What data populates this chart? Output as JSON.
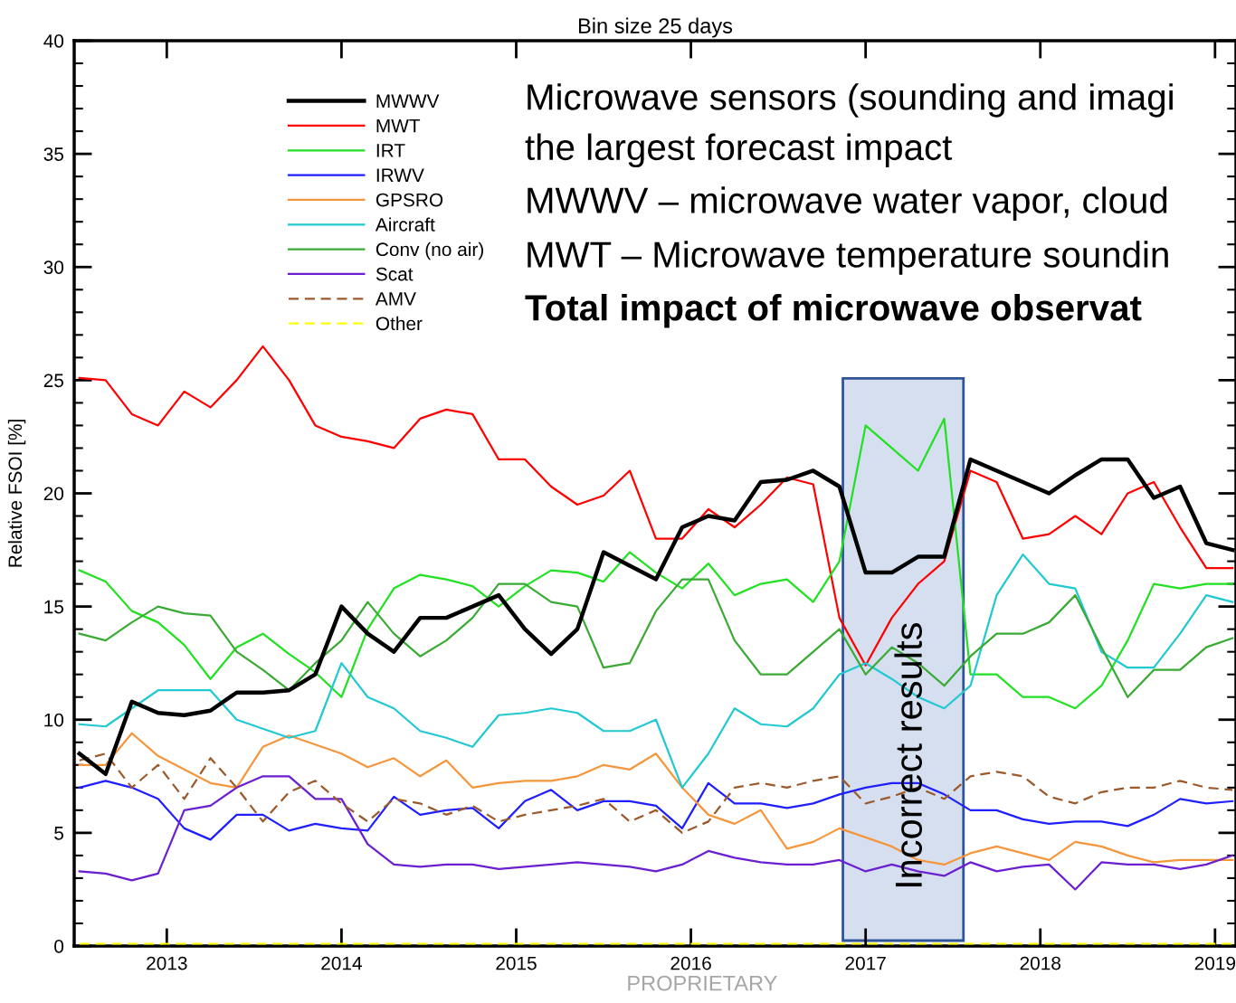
{
  "chart_data": {
    "type": "line",
    "title": "Bin size 25 days",
    "ylabel": "Relative FSOI [%]",
    "x": [
      2012.5,
      2012.65,
      2012.8,
      2012.95,
      2013.1,
      2013.25,
      2013.4,
      2013.55,
      2013.7,
      2013.85,
      2014.0,
      2014.15,
      2014.3,
      2014.45,
      2014.6,
      2014.75,
      2014.9,
      2015.05,
      2015.2,
      2015.35,
      2015.5,
      2015.65,
      2015.8,
      2015.95,
      2016.1,
      2016.25,
      2016.4,
      2016.55,
      2016.7,
      2016.85,
      2017.0,
      2017.15,
      2017.3,
      2017.45,
      2017.6,
      2017.75,
      2017.9,
      2018.05,
      2018.2,
      2018.35,
      2018.5,
      2018.65,
      2018.8,
      2018.95,
      2019.1
    ],
    "series": [
      {
        "name": "MWWV",
        "color": "#000000",
        "values": [
          8.5,
          7.6,
          10.8,
          10.3,
          10.2,
          10.4,
          11.2,
          11.2,
          11.3,
          12.0,
          15.0,
          13.8,
          13.0,
          14.5,
          14.5,
          15.0,
          15.5,
          14.0,
          12.9,
          14.0,
          17.4,
          16.8,
          16.2,
          18.5,
          19.0,
          18.8,
          20.5,
          20.6,
          21.0,
          20.3,
          16.5,
          16.5,
          17.2,
          17.2,
          21.5,
          21.0,
          20.5,
          20.0,
          20.8,
          21.5,
          21.5,
          19.8,
          20.3,
          17.8,
          17.5
        ]
      },
      {
        "name": "MWT",
        "color": "#ff0000",
        "values": [
          25.1,
          25.0,
          23.5,
          23.0,
          24.5,
          23.8,
          25.0,
          26.5,
          25.0,
          23.0,
          22.5,
          22.3,
          22.0,
          23.3,
          23.7,
          23.5,
          21.5,
          21.5,
          20.3,
          19.5,
          19.9,
          21.0,
          18.0,
          18.0,
          19.3,
          18.5,
          19.5,
          20.7,
          20.4,
          14.5,
          12.4,
          14.5,
          16.0,
          17.0,
          21.0,
          20.5,
          18.0,
          18.2,
          19.0,
          18.2,
          20.0,
          20.5,
          18.5,
          16.7,
          16.7
        ]
      },
      {
        "name": "IRT",
        "color": "#22e022",
        "values": [
          16.6,
          16.1,
          14.8,
          14.3,
          13.3,
          11.8,
          13.2,
          13.8,
          12.9,
          12.1,
          11.0,
          14.0,
          15.8,
          16.4,
          16.2,
          15.9,
          15.0,
          15.9,
          16.6,
          16.5,
          16.1,
          17.4,
          16.5,
          15.8,
          16.9,
          15.5,
          16.0,
          16.2,
          15.2,
          17.0,
          23.0,
          22.0,
          21.0,
          23.3,
          12.0,
          12.0,
          11.0,
          11.0,
          10.5,
          11.5,
          13.5,
          16.0,
          15.8,
          16.0,
          16.0
        ]
      },
      {
        "name": "IRWV",
        "color": "#1f1fff",
        "values": [
          7.0,
          7.3,
          7.0,
          6.5,
          5.2,
          4.7,
          5.8,
          5.8,
          5.1,
          5.4,
          5.2,
          5.1,
          6.6,
          5.8,
          6.0,
          6.1,
          5.2,
          6.4,
          6.9,
          6.0,
          6.4,
          6.4,
          6.2,
          5.2,
          7.2,
          6.3,
          6.3,
          6.1,
          6.3,
          6.7,
          7.0,
          7.2,
          7.2,
          6.7,
          6.0,
          6.0,
          5.6,
          5.4,
          5.5,
          5.5,
          5.3,
          5.8,
          6.5,
          6.3,
          6.4
        ]
      },
      {
        "name": "GPSRO",
        "color": "#f5963c",
        "values": [
          8.0,
          8.0,
          9.4,
          8.4,
          7.8,
          7.2,
          7.0,
          8.8,
          9.3,
          8.9,
          8.5,
          7.9,
          8.3,
          7.5,
          8.2,
          7.0,
          7.2,
          7.3,
          7.3,
          7.5,
          8.0,
          7.8,
          8.5,
          7.0,
          5.8,
          5.4,
          6.0,
          4.3,
          4.6,
          5.2,
          4.8,
          4.4,
          3.8,
          3.6,
          4.1,
          4.4,
          4.1,
          3.8,
          4.6,
          4.4,
          4.0,
          3.7,
          3.8,
          3.8,
          3.8
        ]
      },
      {
        "name": "Aircraft",
        "color": "#22c8d2",
        "values": [
          9.8,
          9.7,
          10.5,
          11.3,
          11.3,
          11.3,
          10.0,
          9.6,
          9.2,
          9.5,
          12.5,
          11.0,
          10.5,
          9.5,
          9.2,
          8.8,
          10.2,
          10.3,
          10.5,
          10.3,
          9.5,
          9.5,
          10.0,
          7.0,
          8.5,
          10.5,
          9.8,
          9.7,
          10.5,
          12.0,
          12.5,
          11.8,
          11.0,
          10.5,
          11.5,
          15.5,
          17.3,
          16.0,
          15.8,
          13.0,
          12.3,
          12.3,
          13.8,
          15.5,
          15.2
        ]
      },
      {
        "name": "Conv (no air)",
        "color": "#3aaa35",
        "values": [
          13.8,
          13.5,
          14.3,
          15.0,
          14.7,
          14.6,
          13.0,
          12.2,
          11.3,
          12.5,
          13.5,
          15.2,
          13.8,
          12.8,
          13.5,
          14.5,
          16.0,
          16.0,
          15.2,
          15.0,
          12.3,
          12.5,
          14.8,
          16.2,
          16.2,
          13.5,
          12.0,
          12.0,
          13.0,
          14.0,
          12.0,
          13.2,
          12.5,
          11.5,
          12.8,
          13.8,
          13.8,
          14.3,
          15.5,
          13.2,
          11.0,
          12.2,
          12.2,
          13.2,
          13.6
        ]
      },
      {
        "name": "Scat",
        "color": "#6a1fd0",
        "values": [
          3.3,
          3.2,
          2.9,
          3.2,
          6.0,
          6.2,
          7.0,
          7.5,
          7.5,
          6.5,
          6.5,
          4.5,
          3.6,
          3.5,
          3.6,
          3.6,
          3.4,
          3.5,
          3.6,
          3.7,
          3.6,
          3.5,
          3.3,
          3.6,
          4.2,
          3.9,
          3.7,
          3.6,
          3.6,
          3.8,
          3.3,
          3.6,
          3.3,
          3.1,
          3.7,
          3.3,
          3.5,
          3.6,
          2.5,
          3.7,
          3.6,
          3.6,
          3.4,
          3.6,
          4.0
        ]
      },
      {
        "name": "AMV",
        "color": "#9c5a2c",
        "line_style": "dashed",
        "values": [
          8.2,
          8.5,
          7.0,
          8.0,
          6.5,
          8.3,
          7.0,
          5.5,
          6.8,
          7.3,
          6.3,
          5.5,
          6.5,
          6.3,
          5.8,
          6.2,
          5.5,
          5.8,
          6.0,
          6.2,
          6.5,
          5.5,
          6.0,
          5.0,
          5.5,
          7.0,
          7.2,
          7.0,
          7.3,
          7.5,
          6.3,
          6.6,
          7.0,
          6.5,
          7.5,
          7.7,
          7.5,
          6.6,
          6.3,
          6.8,
          7.0,
          7.0,
          7.3,
          7.0,
          6.9
        ]
      },
      {
        "name": "Other",
        "color": "#ffff00",
        "line_style": "dashed",
        "values": [
          0.1,
          0.1,
          0.1,
          0.1,
          0.1,
          0.1,
          0.1,
          0.1,
          0.1,
          0.1,
          0.1,
          0.1,
          0.1,
          0.1,
          0.1,
          0.1,
          0.1,
          0.1,
          0.1,
          0.1,
          0.1,
          0.1,
          0.1,
          0.1,
          0.1,
          0.1,
          0.1,
          0.1,
          0.1,
          0.1,
          0.1,
          0.1,
          0.1,
          0.1,
          0.1,
          0.1,
          0.1,
          0.1,
          0.1,
          0.1,
          0.1,
          0.1,
          0.1,
          0.1,
          0.1
        ]
      }
    ],
    "xlim": [
      2012.47,
      2019.12
    ],
    "ylim": [
      0,
      40
    ],
    "xticks": [
      2013,
      2014,
      2015,
      2016,
      2017,
      2018,
      2019
    ],
    "yticks": [
      0,
      5,
      10,
      15,
      20,
      25,
      30,
      35,
      40
    ],
    "grid": false,
    "legend": "top left",
    "line_style": "solid",
    "marker": "none",
    "bands": [
      {
        "axis": "x",
        "from": 2016.87,
        "to": 2017.56,
        "label": "Incorrect results",
        "color": "#d6dff0"
      }
    ],
    "annotations": [
      "Microwave sensors (sounding and imagi",
      "the largest forecast impact",
      "MWWV – microwave water vapor, cloud",
      "MWT – Microwave temperature soundin",
      "Total impact of microwave observat",
      "PROPRIETARY"
    ]
  }
}
